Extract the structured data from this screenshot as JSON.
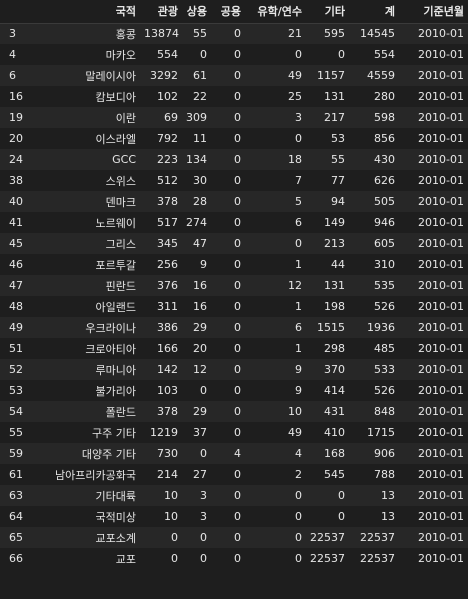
{
  "columns": {
    "index": "",
    "nationality": "국적",
    "tourism": "관광",
    "business": "상용",
    "official": "공용",
    "study": "유학/연수",
    "other": "기타",
    "total": "계",
    "base_month": "기준년월"
  },
  "rows": [
    {
      "index": "3",
      "nationality": "홍콩",
      "tourism": "13874",
      "business": "55",
      "official": "0",
      "study": "21",
      "other": "595",
      "total": "14545",
      "base_month": "2010-01"
    },
    {
      "index": "4",
      "nationality": "마카오",
      "tourism": "554",
      "business": "0",
      "official": "0",
      "study": "0",
      "other": "0",
      "total": "554",
      "base_month": "2010-01"
    },
    {
      "index": "6",
      "nationality": "말레이시아",
      "tourism": "3292",
      "business": "61",
      "official": "0",
      "study": "49",
      "other": "1157",
      "total": "4559",
      "base_month": "2010-01"
    },
    {
      "index": "16",
      "nationality": "캄보디아",
      "tourism": "102",
      "business": "22",
      "official": "0",
      "study": "25",
      "other": "131",
      "total": "280",
      "base_month": "2010-01"
    },
    {
      "index": "19",
      "nationality": "이란",
      "tourism": "69",
      "business": "309",
      "official": "0",
      "study": "3",
      "other": "217",
      "total": "598",
      "base_month": "2010-01"
    },
    {
      "index": "20",
      "nationality": "이스라엘",
      "tourism": "792",
      "business": "11",
      "official": "0",
      "study": "0",
      "other": "53",
      "total": "856",
      "base_month": "2010-01"
    },
    {
      "index": "24",
      "nationality": "GCC",
      "tourism": "223",
      "business": "134",
      "official": "0",
      "study": "18",
      "other": "55",
      "total": "430",
      "base_month": "2010-01"
    },
    {
      "index": "38",
      "nationality": "스위스",
      "tourism": "512",
      "business": "30",
      "official": "0",
      "study": "7",
      "other": "77",
      "total": "626",
      "base_month": "2010-01"
    },
    {
      "index": "40",
      "nationality": "덴마크",
      "tourism": "378",
      "business": "28",
      "official": "0",
      "study": "5",
      "other": "94",
      "total": "505",
      "base_month": "2010-01"
    },
    {
      "index": "41",
      "nationality": "노르웨이",
      "tourism": "517",
      "business": "274",
      "official": "0",
      "study": "6",
      "other": "149",
      "total": "946",
      "base_month": "2010-01"
    },
    {
      "index": "45",
      "nationality": "그리스",
      "tourism": "345",
      "business": "47",
      "official": "0",
      "study": "0",
      "other": "213",
      "total": "605",
      "base_month": "2010-01"
    },
    {
      "index": "46",
      "nationality": "포르투갈",
      "tourism": "256",
      "business": "9",
      "official": "0",
      "study": "1",
      "other": "44",
      "total": "310",
      "base_month": "2010-01"
    },
    {
      "index": "47",
      "nationality": "핀란드",
      "tourism": "376",
      "business": "16",
      "official": "0",
      "study": "12",
      "other": "131",
      "total": "535",
      "base_month": "2010-01"
    },
    {
      "index": "48",
      "nationality": "아일랜드",
      "tourism": "311",
      "business": "16",
      "official": "0",
      "study": "1",
      "other": "198",
      "total": "526",
      "base_month": "2010-01"
    },
    {
      "index": "49",
      "nationality": "우크라이나",
      "tourism": "386",
      "business": "29",
      "official": "0",
      "study": "6",
      "other": "1515",
      "total": "1936",
      "base_month": "2010-01"
    },
    {
      "index": "51",
      "nationality": "크로아티아",
      "tourism": "166",
      "business": "20",
      "official": "0",
      "study": "1",
      "other": "298",
      "total": "485",
      "base_month": "2010-01"
    },
    {
      "index": "52",
      "nationality": "루마니아",
      "tourism": "142",
      "business": "12",
      "official": "0",
      "study": "9",
      "other": "370",
      "total": "533",
      "base_month": "2010-01"
    },
    {
      "index": "53",
      "nationality": "불가리아",
      "tourism": "103",
      "business": "0",
      "official": "0",
      "study": "9",
      "other": "414",
      "total": "526",
      "base_month": "2010-01"
    },
    {
      "index": "54",
      "nationality": "폴란드",
      "tourism": "378",
      "business": "29",
      "official": "0",
      "study": "10",
      "other": "431",
      "total": "848",
      "base_month": "2010-01"
    },
    {
      "index": "55",
      "nationality": "구주 기타",
      "tourism": "1219",
      "business": "37",
      "official": "0",
      "study": "49",
      "other": "410",
      "total": "1715",
      "base_month": "2010-01"
    },
    {
      "index": "59",
      "nationality": "대양주 기타",
      "tourism": "730",
      "business": "0",
      "official": "4",
      "study": "4",
      "other": "168",
      "total": "906",
      "base_month": "2010-01"
    },
    {
      "index": "61",
      "nationality": "남아프리카공화국",
      "tourism": "214",
      "business": "27",
      "official": "0",
      "study": "2",
      "other": "545",
      "total": "788",
      "base_month": "2010-01"
    },
    {
      "index": "63",
      "nationality": "기타대륙",
      "tourism": "10",
      "business": "3",
      "official": "0",
      "study": "0",
      "other": "0",
      "total": "13",
      "base_month": "2010-01"
    },
    {
      "index": "64",
      "nationality": "국적미상",
      "tourism": "10",
      "business": "3",
      "official": "0",
      "study": "0",
      "other": "0",
      "total": "13",
      "base_month": "2010-01"
    },
    {
      "index": "65",
      "nationality": "교포소계",
      "tourism": "0",
      "business": "0",
      "official": "0",
      "study": "0",
      "other": "22537",
      "total": "22537",
      "base_month": "2010-01"
    },
    {
      "index": "66",
      "nationality": "교포",
      "tourism": "0",
      "business": "0",
      "official": "0",
      "study": "0",
      "other": "22537",
      "total": "22537",
      "base_month": "2010-01"
    }
  ]
}
